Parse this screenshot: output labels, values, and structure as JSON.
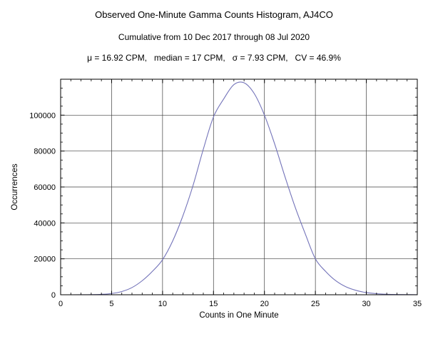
{
  "chart_data": {
    "type": "line",
    "title": "Observed One-Minute Gamma Counts Histogram, AJ4CO",
    "subtitle": "Cumulative from 10 Dec 2017 through 08 Jul 2020",
    "stats": "μ = 16.92 CPM,   median = 17 CPM,   σ = 7.93 CPM,   CV = 46.9%",
    "xlabel": "Counts in One Minute",
    "ylabel": "Occurrences",
    "x": [
      0,
      1,
      2,
      3,
      4,
      5,
      6,
      7,
      8,
      9,
      10,
      11,
      12,
      13,
      14,
      15,
      16,
      17,
      18,
      19,
      20,
      21,
      22,
      23,
      24,
      25,
      26,
      27,
      28,
      29,
      30,
      31,
      32,
      33,
      34,
      35
    ],
    "values": [
      0,
      0,
      20,
      80,
      250,
      700,
      1800,
      4000,
      7800,
      13000,
      19500,
      30000,
      44000,
      61000,
      81000,
      99000,
      109000,
      117000,
      118000,
      112000,
      100000,
      84000,
      66000,
      49000,
      34000,
      20000,
      13000,
      7800,
      4400,
      2400,
      1200,
      600,
      300,
      150,
      80,
      50
    ],
    "xlim": [
      0,
      35
    ],
    "ylim": [
      0,
      120000
    ],
    "xticks": [
      0,
      5,
      10,
      15,
      20,
      25,
      30,
      35
    ],
    "xtick_labels": [
      "0",
      "5",
      "10",
      "15",
      "20",
      "25",
      "30",
      "35"
    ],
    "yticks": [
      0,
      20000,
      40000,
      60000,
      80000,
      100000
    ],
    "ytick_labels": [
      "0",
      "20000",
      "40000",
      "60000",
      "80000",
      "100000"
    ],
    "grid_x": [
      5,
      10,
      15,
      20,
      25,
      30
    ],
    "grid_y": [
      20000,
      40000,
      60000,
      80000,
      100000
    ],
    "x_minor_step": 1,
    "y_minor_step": 5000,
    "grid": true,
    "legend": false,
    "colors": {
      "curve": "#7373b9",
      "grid": "#3f3f3f",
      "frame": "#000000",
      "text": "#000000",
      "background": "#ffffff"
    }
  }
}
